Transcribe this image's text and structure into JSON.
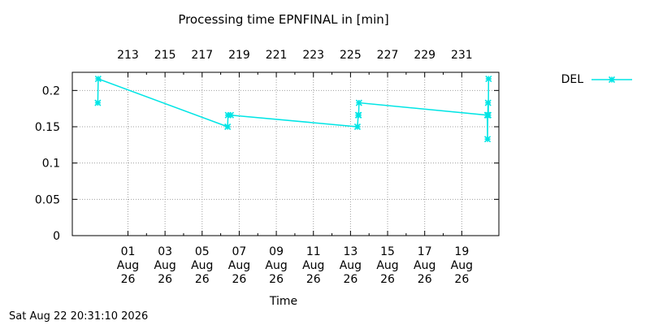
{
  "chart_data": {
    "type": "line",
    "title": "Processing time EPNFINAL in [min]",
    "xlabel": "Time",
    "ylabel": "",
    "ylim": [
      0,
      0.225
    ],
    "y_ticks": [
      0,
      0.05,
      0.1,
      0.15,
      0.2
    ],
    "y_tick_labels": [
      "0",
      "0.05",
      "0.1",
      "0.15",
      "0.2"
    ],
    "x_range": [
      "2026-07-29",
      "2026-08-21"
    ],
    "x_ticks": [
      "2026-08-01",
      "2026-08-03",
      "2026-08-05",
      "2026-08-07",
      "2026-08-09",
      "2026-08-11",
      "2026-08-13",
      "2026-08-15",
      "2026-08-17",
      "2026-08-19"
    ],
    "x_tick_labels": [
      [
        "01",
        "Aug",
        "26"
      ],
      [
        "03",
        "Aug",
        "26"
      ],
      [
        "05",
        "Aug",
        "26"
      ],
      [
        "07",
        "Aug",
        "26"
      ],
      [
        "09",
        "Aug",
        "26"
      ],
      [
        "11",
        "Aug",
        "26"
      ],
      [
        "13",
        "Aug",
        "26"
      ],
      [
        "15",
        "Aug",
        "26"
      ],
      [
        "17",
        "Aug",
        "26"
      ],
      [
        "19",
        "Aug",
        "26"
      ]
    ],
    "x2_tick_labels": [
      "213",
      "215",
      "217",
      "219",
      "221",
      "223",
      "225",
      "227",
      "229",
      "231"
    ],
    "grid": true,
    "legend_position": "top-right-outside",
    "series": [
      {
        "name": "DEL",
        "color": "#00e5e5",
        "marker": "asterisk",
        "points": [
          {
            "x": "2026-07-30 09:00",
            "y": 0.183
          },
          {
            "x": "2026-07-30 09:30",
            "y": 0.216
          },
          {
            "x": "2026-08-06 09:00",
            "y": 0.15
          },
          {
            "x": "2026-08-06 09:30",
            "y": 0.166
          },
          {
            "x": "2026-08-06 13:00",
            "y": 0.166
          },
          {
            "x": "2026-08-13 09:00",
            "y": 0.15
          },
          {
            "x": "2026-08-13 10:00",
            "y": 0.166
          },
          {
            "x": "2026-08-13 10:30",
            "y": 0.166
          },
          {
            "x": "2026-08-13 11:00",
            "y": 0.183
          },
          {
            "x": "2026-08-20 09:00",
            "y": 0.166
          },
          {
            "x": "2026-08-20 09:20",
            "y": 0.133
          },
          {
            "x": "2026-08-20 09:40",
            "y": 0.166
          },
          {
            "x": "2026-08-20 10:00",
            "y": 0.183
          },
          {
            "x": "2026-08-20 10:20",
            "y": 0.166
          },
          {
            "x": "2026-08-20 10:40",
            "y": 0.216
          }
        ]
      }
    ]
  },
  "footer": {
    "timestamp": "Sat Aug 22 20:31:10 2026"
  }
}
